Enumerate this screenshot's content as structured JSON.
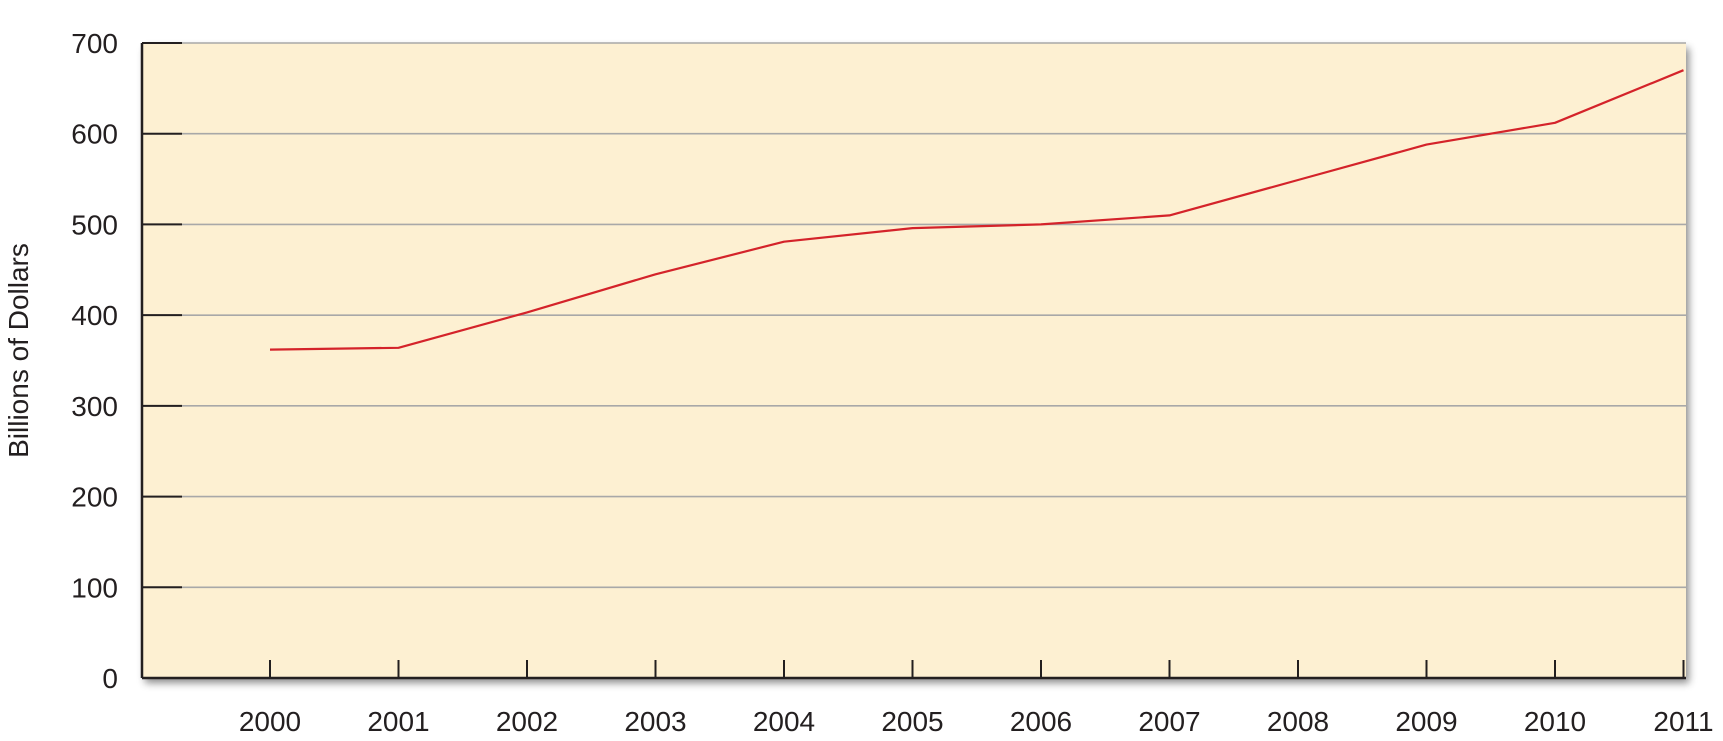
{
  "chart_data": {
    "type": "line",
    "title": "",
    "xlabel": "",
    "ylabel": "Billions of Dollars",
    "x": [
      "2000",
      "2001",
      "2002",
      "2003",
      "2004",
      "2005",
      "2006",
      "2007",
      "2008",
      "2009",
      "2010",
      "2011"
    ],
    "series": [
      {
        "values": [
          362,
          364,
          403,
          445,
          481,
          496,
          500,
          510,
          549,
          588,
          612,
          670
        ]
      }
    ],
    "yticks": [
      "0",
      "100",
      "200",
      "300",
      "400",
      "500",
      "600",
      "700"
    ],
    "ylim": [
      0,
      700
    ],
    "grid": true,
    "colors": {
      "plot_background": "#fdf0d2",
      "line": "#d4232a",
      "grid": "#a8a8a8",
      "axis": "#231f20"
    }
  }
}
